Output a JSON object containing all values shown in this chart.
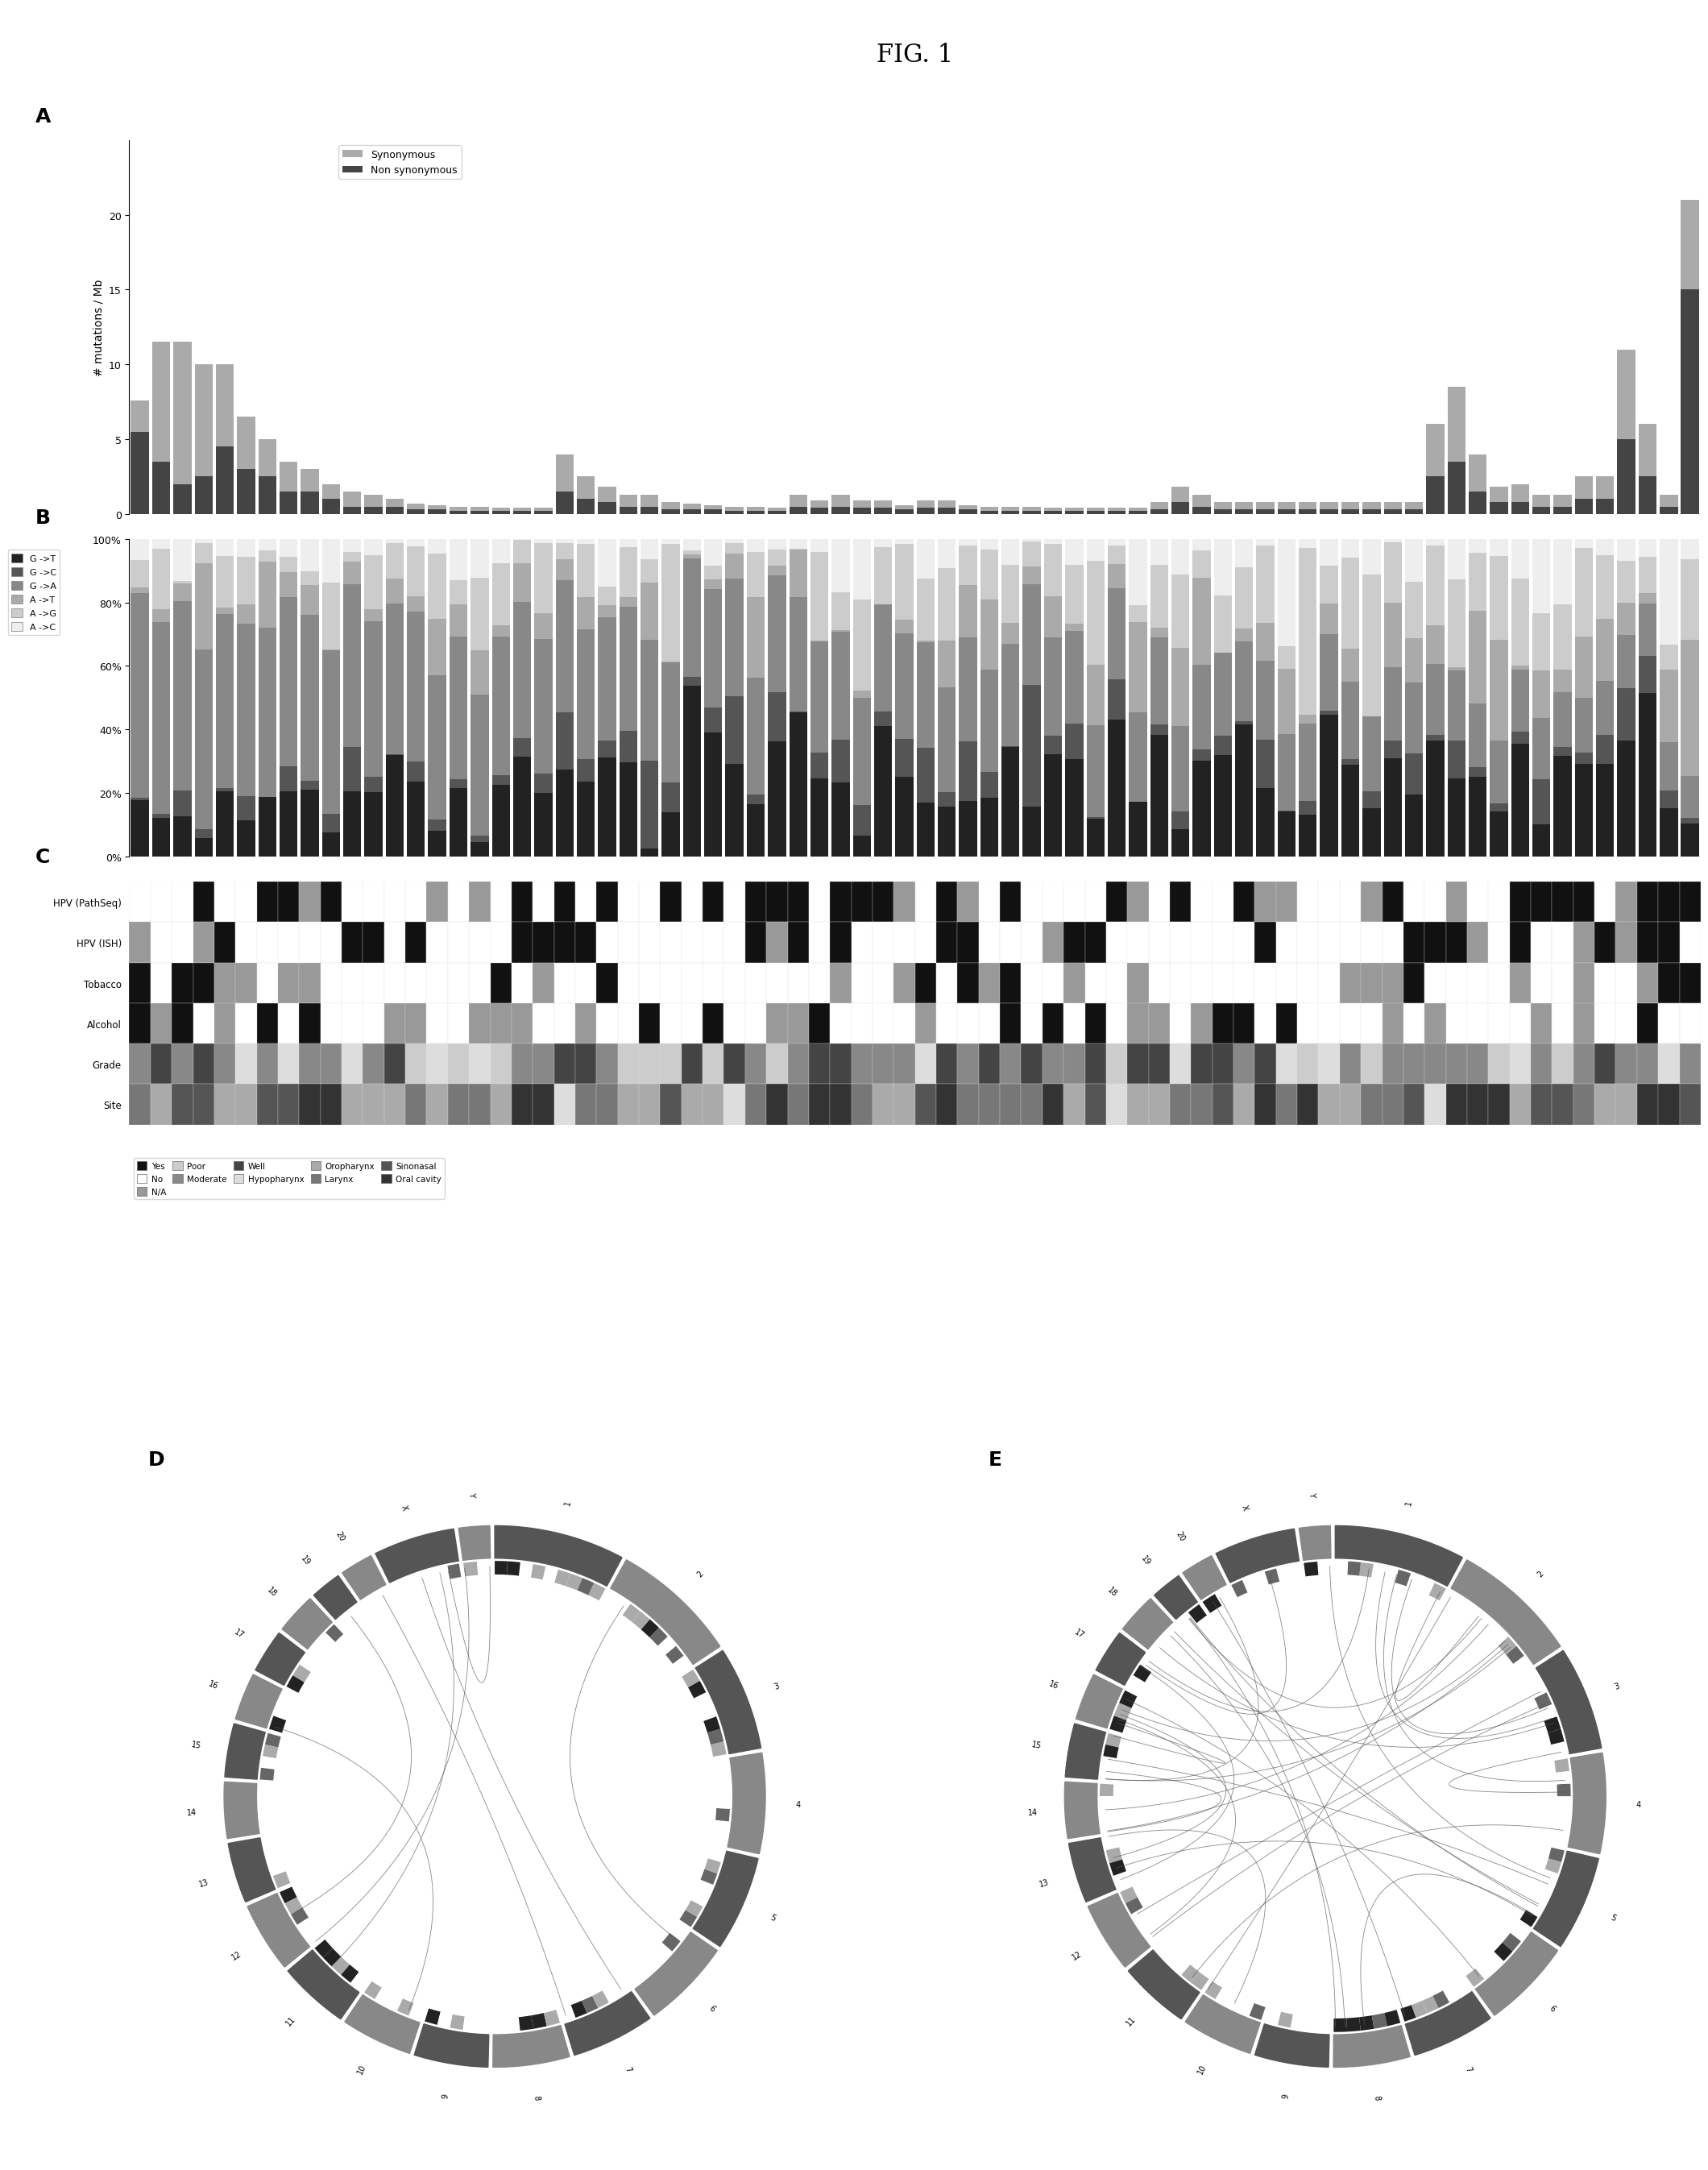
{
  "title": "FIG. 1",
  "panel_A": {
    "n_samples": 74,
    "synonymous": [
      2.1,
      8.0,
      9.5,
      7.5,
      5.5,
      3.5,
      2.5,
      2.0,
      1.5,
      1.0,
      1.0,
      0.8,
      0.5,
      0.4,
      0.3,
      0.3,
      0.3,
      0.2,
      0.2,
      0.2,
      2.5,
      1.5,
      1.0,
      0.8,
      0.8,
      0.5,
      0.4,
      0.3,
      0.3,
      0.3,
      0.2,
      0.8,
      0.5,
      0.8,
      0.5,
      0.5,
      0.3,
      0.5,
      0.5,
      0.3,
      0.3,
      0.3,
      0.3,
      0.2,
      0.2,
      0.2,
      0.2,
      0.2,
      0.5,
      1.0,
      0.8,
      0.5,
      0.5,
      0.5,
      0.5,
      0.5,
      0.5,
      0.5,
      0.5,
      0.5,
      0.5,
      3.5,
      5.0,
      2.5,
      1.0,
      1.2,
      0.8,
      0.8,
      1.5,
      1.5,
      6.0,
      3.5,
      0.8,
      6.0
    ],
    "non_synonymous": [
      5.5,
      3.5,
      2.0,
      2.5,
      4.5,
      3.0,
      2.5,
      1.5,
      1.5,
      1.0,
      0.5,
      0.5,
      0.5,
      0.3,
      0.3,
      0.2,
      0.2,
      0.2,
      0.2,
      0.2,
      1.5,
      1.0,
      0.8,
      0.5,
      0.5,
      0.3,
      0.3,
      0.3,
      0.2,
      0.2,
      0.2,
      0.5,
      0.4,
      0.5,
      0.4,
      0.4,
      0.3,
      0.4,
      0.4,
      0.3,
      0.2,
      0.2,
      0.2,
      0.2,
      0.2,
      0.2,
      0.2,
      0.2,
      0.3,
      0.8,
      0.5,
      0.3,
      0.3,
      0.3,
      0.3,
      0.3,
      0.3,
      0.3,
      0.3,
      0.3,
      0.3,
      2.5,
      3.5,
      1.5,
      0.8,
      0.8,
      0.5,
      0.5,
      1.0,
      1.0,
      5.0,
      2.5,
      0.5,
      15.0
    ],
    "ylabel": "# mutations / Mb",
    "yticks": [
      0,
      5,
      10,
      15,
      20
    ],
    "color_syn": "#aaaaaa",
    "color_nonsyn": "#444444"
  },
  "panel_B": {
    "legend_labels": [
      "G ->T",
      "G ->C",
      "G ->A",
      "A ->T",
      "A ->G",
      "A ->C"
    ],
    "colors": [
      "#222222",
      "#555555",
      "#888888",
      "#aaaaaa",
      "#cccccc",
      "#eeeeee"
    ],
    "yticks": [
      "0%",
      "20%",
      "40%",
      "60%",
      "80%",
      "100%"
    ]
  },
  "panel_C": {
    "rows": [
      "HPV (PathSeq)",
      "HPV (ISH)",
      "Tobacco",
      "Alcohol",
      "Grade",
      "Site"
    ],
    "n_samples": 74,
    "color_yes": "#111111",
    "color_no": "#ffffff",
    "color_na": "#999999",
    "legend_items": {
      "Yes": "#111111",
      "No": "#ffffff",
      "N/A": "#999999",
      "Poor": "#cccccc",
      "Moderate": "#888888",
      "Well": "#444444",
      "Hypopharynx": "#dddddd",
      "Oropharynx": "#aaaaaa",
      "Larynx": "#777777",
      "Sinonasal": "#555555",
      "Oral cavity": "#333333"
    }
  },
  "background_color": "#ffffff",
  "chromosomes": [
    "1",
    "2",
    "3",
    "4",
    "5",
    "6",
    "7",
    "8",
    "9",
    "10",
    "11",
    "12",
    "13",
    "14",
    "15",
    "16",
    "17",
    "18",
    "19",
    "20",
    "X",
    "Y"
  ],
  "chr_sizes": [
    249,
    242,
    198,
    191,
    181,
    171,
    159,
    146,
    141,
    136,
    135,
    134,
    115,
    107,
    102,
    90,
    83,
    78,
    59,
    63,
    155,
    59
  ]
}
